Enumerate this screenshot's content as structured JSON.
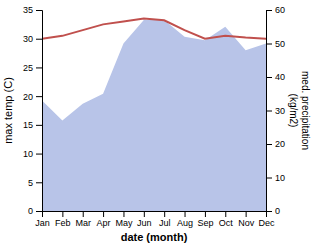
{
  "chart_data": {
    "type": "line",
    "categories": [
      "Jan",
      "Feb",
      "Mar",
      "Apr",
      "May",
      "Jun",
      "Jul",
      "Aug",
      "Sep",
      "Oct",
      "Nov",
      "Dec"
    ],
    "xlabel": "date (month)",
    "ylabel": "max temp (C)",
    "y2label": "med. precipitation\n(kg/m2)",
    "series": [
      {
        "type": "area",
        "axis": "y2",
        "color": "#b8c4e8",
        "values": [
          33,
          27,
          32,
          35,
          50,
          57,
          57,
          52,
          51,
          55,
          48,
          50
        ]
      },
      {
        "type": "line",
        "color": "#c0504d",
        "values": [
          30.0,
          30.5,
          31.5,
          32.5,
          33.0,
          33.5,
          33.2,
          31.5,
          30.0,
          30.5,
          30.2,
          30.0
        ]
      }
    ],
    "ylim": [
      0,
      35
    ],
    "yticks": [
      0,
      5,
      10,
      15,
      20,
      25,
      30,
      35
    ],
    "y2lim": [
      0,
      60
    ],
    "y2ticks": [
      0,
      10,
      20,
      30,
      40,
      50,
      60
    ]
  }
}
